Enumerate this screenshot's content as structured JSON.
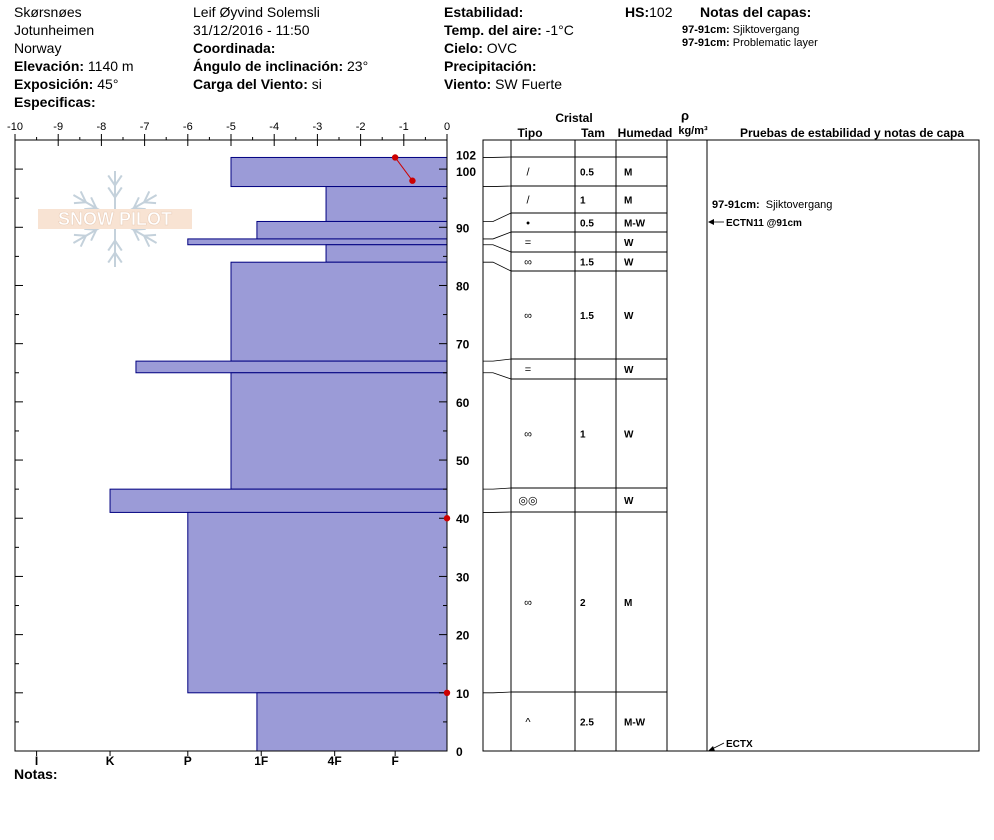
{
  "header": {
    "location": "Skørsnøes",
    "range": "Jotunheimen",
    "country": "Norway",
    "elevation_label": "Elevación:",
    "elevation_value": "1140 m",
    "aspect_label": "Exposición:",
    "aspect_value": "45°",
    "specifics_label": "Especificas:",
    "observer": "Leif Øyvind Solemsli",
    "datetime": "31/12/2016 - 11:50",
    "coord_label": "Coordinada:",
    "slope_label": "Ángulo de inclinación:",
    "slope_value": "23°",
    "windload_label": "Carga del Viento:",
    "windload_value": "si",
    "stability_label": "Estabilidad:",
    "airtemp_label": "Temp. del aire:",
    "airtemp_value": "-1°C",
    "sky_label": "Cielo:",
    "sky_value": "OVC",
    "precip_label": "Precipitación:",
    "wind_label": "Viento:",
    "wind_value": "SW Fuerte",
    "hs_label": "HS:",
    "hs_value": "102",
    "layer_notes_label": "Notas del capas:",
    "layer_notes": [
      {
        "range": "97-91cm:",
        "text": "Sjiktovergang"
      },
      {
        "range": "97-91cm:",
        "text": "Problematic layer"
      }
    ],
    "notes_label": "Notas:"
  },
  "table": {
    "crystal_label": "Cristal",
    "type_label": "Tipo",
    "size_label": "Tam",
    "moisture_label": "Humedad",
    "density_symbol": "ρ",
    "density_unit": "kg/m³",
    "tests_label": "Pruebas de estabilidad y notas de capa",
    "stability_notes": [
      {
        "range": "97-91cm:",
        "text": "Sjiktovergang",
        "height": 93.5
      },
      {
        "text": "ECTN11 @91cm",
        "height": 91
      },
      {
        "text": "ECTX",
        "height": 0
      }
    ]
  },
  "logo": {
    "text": "SNOW PILOT"
  },
  "colors": {
    "layer_fill": "#9b9bd7",
    "layer_stroke": "#000080",
    "temp_point": "#cc0000"
  },
  "chart_data": {
    "type": "bar",
    "title": "",
    "x_axis": {
      "ticks": [
        "-10",
        "-9",
        "-8",
        "-7",
        "-6",
        "-5",
        "-4",
        "-3",
        "-2",
        "-1",
        "0"
      ],
      "range": [
        -10,
        0
      ]
    },
    "y_axis": {
      "range": [
        0,
        105
      ],
      "ticks": [
        "0",
        "10",
        "20",
        "30",
        "40",
        "50",
        "60",
        "70",
        "80",
        "90",
        "100",
        "102"
      ]
    },
    "hardness_axis": {
      "labels": [
        "I",
        "K",
        "P",
        "1F",
        "4F",
        "F"
      ],
      "positions": [
        -9.5,
        -7.8,
        -6,
        -4.3,
        -2.6,
        -1.2
      ]
    },
    "layers": [
      {
        "top": 102,
        "bottom": 97,
        "hardness": -5,
        "type": "/",
        "size": "0.5",
        "moisture": "M"
      },
      {
        "top": 97,
        "bottom": 91,
        "hardness": -2.8,
        "type": "/",
        "size": "1",
        "moisture": "M"
      },
      {
        "top": 91,
        "bottom": 88,
        "hardness": -4.4,
        "type": "•",
        "size": "0.5",
        "moisture": "M-W"
      },
      {
        "top": 88,
        "bottom": 87,
        "hardness": -6,
        "type": "=",
        "size": "",
        "moisture": "W"
      },
      {
        "top": 87,
        "bottom": 84,
        "hardness": -2.8,
        "type": "∞",
        "size": "1.5",
        "moisture": "W"
      },
      {
        "top": 84,
        "bottom": 67,
        "hardness": -5,
        "type": "∞",
        "size": "1.5",
        "moisture": "W"
      },
      {
        "top": 67,
        "bottom": 65,
        "hardness": -7.2,
        "type": "=",
        "size": "",
        "moisture": "W"
      },
      {
        "top": 65,
        "bottom": 45,
        "hardness": -5,
        "type": "∞",
        "size": "1",
        "moisture": "W"
      },
      {
        "top": 45,
        "bottom": 41,
        "hardness": -7.8,
        "type": "◎◎",
        "size": "",
        "moisture": "W"
      },
      {
        "top": 41,
        "bottom": 10,
        "hardness": -6,
        "type": "∞",
        "size": "2",
        "moisture": "M"
      },
      {
        "top": 10,
        "bottom": 0,
        "hardness": -4.4,
        "type": "^",
        "size": "2.5",
        "moisture": "M-W"
      }
    ],
    "temperature_points": [
      {
        "height": 102,
        "temp": -1.2
      },
      {
        "height": 98,
        "temp": -0.8
      },
      {
        "height": 40,
        "temp": 0
      },
      {
        "height": 10,
        "temp": 0
      }
    ]
  }
}
